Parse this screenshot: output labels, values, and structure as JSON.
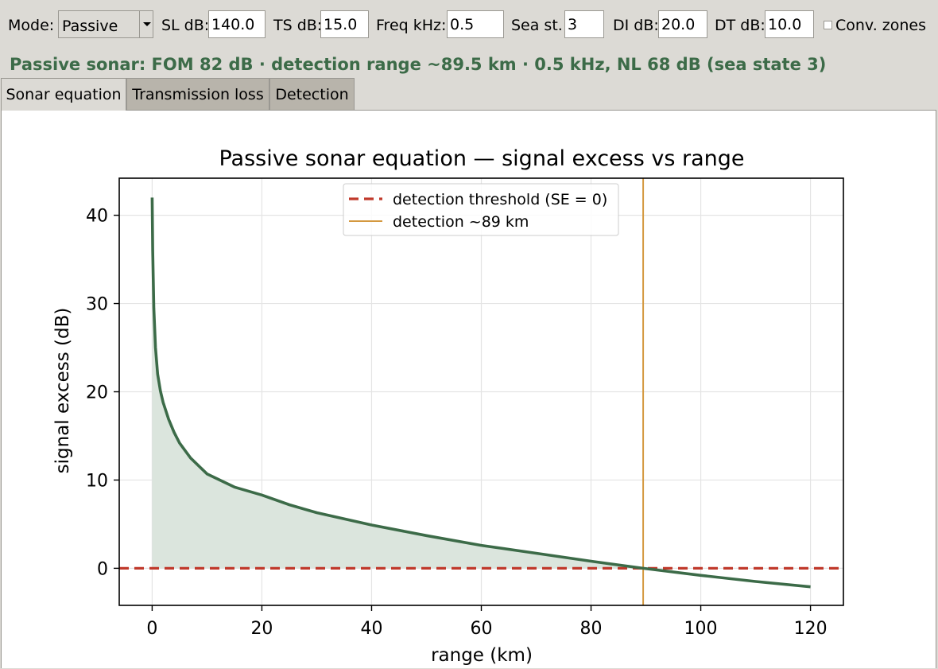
{
  "toolbar": {
    "mode_label": "Mode:",
    "mode_value": "Passive",
    "sl_label": "SL dB:",
    "sl_value": "140.0",
    "ts_label": "TS dB:",
    "ts_value": "15.0",
    "freq_label": "Freq kHz:",
    "freq_value": "0.5",
    "sea_label": "Sea st.:",
    "sea_value": "3",
    "di_label": "DI dB:",
    "di_value": "20.0",
    "dt_label": "DT dB:",
    "dt_value": "10.0",
    "conv_label": "Conv. zones",
    "conv_checked": false
  },
  "status": "Passive sonar: FOM 82 dB  ·  detection range ~89.5 km  ·  0.5 kHz, NL 68 dB (sea state 3)",
  "tabs": [
    {
      "label": "Sonar equation",
      "active": true
    },
    {
      "label": "Transmission loss",
      "active": false
    },
    {
      "label": "Detection",
      "active": false
    }
  ],
  "colors": {
    "accent": "#3c6b48",
    "curve": "#3c6b48",
    "fill": "#dbe5dd",
    "threshold": "#c0392b",
    "detection": "#d4983f"
  },
  "chart_data": {
    "type": "line",
    "title": "Passive sonar equation — signal excess vs range",
    "xlabel": "range (km)",
    "ylabel": "signal excess (dB)",
    "xlim": [
      -6,
      126
    ],
    "ylim": [
      -4.2,
      44.2
    ],
    "xticks": [
      0,
      20,
      40,
      60,
      80,
      100,
      120
    ],
    "yticks": [
      0,
      10,
      20,
      30,
      40
    ],
    "grid": true,
    "legend_position": "top-center",
    "legend": [
      "detection threshold (SE = 0)",
      "detection ~89 km"
    ],
    "series": [
      {
        "x": [
          0,
          0.1,
          0.3,
          0.6,
          1,
          1.5,
          2,
          3,
          4,
          5,
          7,
          10,
          15,
          20,
          25,
          30,
          40,
          50,
          60,
          70,
          80,
          89.5,
          100,
          110,
          120
        ],
        "y": [
          42,
          36,
          29.5,
          25,
          22,
          20.1,
          18.8,
          16.9,
          15.4,
          14.2,
          12.5,
          10.7,
          9.2,
          8.3,
          7.2,
          6.3,
          4.9,
          3.7,
          2.6,
          1.7,
          0.8,
          0,
          -0.8,
          -1.5,
          -2.1
        ]
      }
    ],
    "threshold_y": 0,
    "detection_x": 89.5
  }
}
